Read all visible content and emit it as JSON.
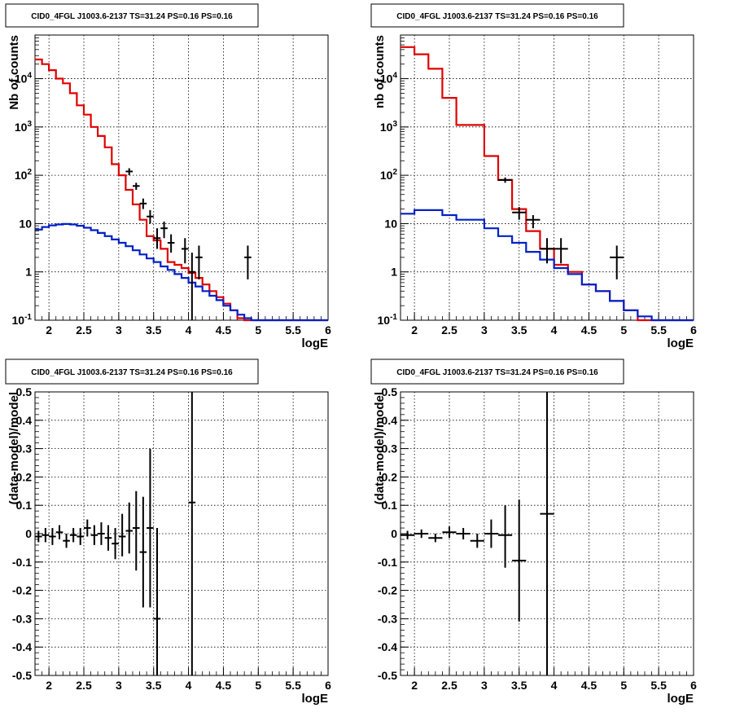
{
  "colors": {
    "model": "#e00000",
    "background": "#0020c8",
    "data": "#000000"
  },
  "chart_data": [
    {
      "type": "line",
      "title": "CID0_4FGL J1003.6-2137 TS=31.24 PS=0.16 PS=0.16",
      "xlabel": "logE",
      "ylabel": "Nb of counts",
      "xlim": [
        1.8,
        6.0
      ],
      "ylim": [
        0.1,
        80000
      ],
      "yscale": "log",
      "grid": true,
      "xticks": [
        "2",
        "2.5",
        "3",
        "3.5",
        "4",
        "4.5",
        "5",
        "5.5",
        "6"
      ],
      "yticks": [
        "10^-1",
        "1",
        "10",
        "10^2",
        "10^3",
        "10^4"
      ],
      "series": [
        {
          "kind": "step",
          "color": "model",
          "edges": [
            1.8,
            1.9,
            2.0,
            2.1,
            2.2,
            2.3,
            2.4,
            2.5,
            2.6,
            2.7,
            2.8,
            2.9,
            3.0,
            3.1,
            3.2,
            3.3,
            3.4,
            3.5,
            3.6,
            3.7,
            3.8,
            3.9,
            4.0,
            4.1,
            4.2,
            4.3,
            4.4,
            4.5,
            4.6,
            4.7,
            4.8,
            4.9,
            5.0,
            5.1,
            5.2,
            5.3,
            5.4,
            5.5,
            5.6,
            5.7,
            5.8,
            5.9,
            6.0
          ],
          "values": [
            25000,
            20000,
            15000,
            10000,
            8000,
            5000,
            2800,
            1800,
            1000,
            650,
            380,
            170,
            100,
            50,
            25,
            12,
            5.5,
            4.5,
            3.0,
            1.6,
            1.4,
            1.2,
            0.95,
            0.75,
            0.55,
            0.4,
            0.3,
            0.22,
            0.16,
            0.11,
            0.1,
            0.1,
            0.1,
            0.1,
            0.1,
            0.1,
            0.1,
            0.1,
            0.1,
            0.1,
            0.1,
            0.1
          ]
        },
        {
          "kind": "step",
          "color": "background",
          "edges": [
            1.8,
            1.9,
            2.0,
            2.1,
            2.2,
            2.3,
            2.4,
            2.5,
            2.6,
            2.7,
            2.8,
            2.9,
            3.0,
            3.1,
            3.2,
            3.3,
            3.4,
            3.5,
            3.6,
            3.7,
            3.8,
            3.9,
            4.0,
            4.1,
            4.2,
            4.3,
            4.4,
            4.5,
            4.6,
            4.7,
            4.8,
            4.9,
            5.0,
            5.1,
            5.2,
            5.3,
            5.4,
            5.5,
            5.6,
            5.7,
            5.8,
            5.9,
            6.0
          ],
          "values": [
            7.5,
            8.5,
            9.2,
            9.6,
            9.8,
            9.6,
            9.0,
            8.2,
            7.3,
            6.4,
            5.5,
            4.7,
            4.0,
            3.4,
            2.8,
            2.3,
            1.9,
            1.6,
            1.3,
            1.1,
            0.9,
            0.75,
            0.6,
            0.5,
            0.4,
            0.32,
            0.26,
            0.2,
            0.16,
            0.13,
            0.11,
            0.1,
            0.1,
            0.1,
            0.1,
            0.1,
            0.1,
            0.1,
            0.1,
            0.1,
            0.1,
            0.1
          ]
        },
        {
          "kind": "points",
          "color": "data",
          "points": [
            {
              "x": 3.15,
              "xerr": 0.05,
              "y": 120,
              "lo": 100,
              "hi": 140
            },
            {
              "x": 3.25,
              "xerr": 0.05,
              "y": 60,
              "lo": 50,
              "hi": 70
            },
            {
              "x": 3.35,
              "xerr": 0.05,
              "y": 26,
              "lo": 20,
              "hi": 33
            },
            {
              "x": 3.45,
              "xerr": 0.05,
              "y": 14,
              "lo": 10,
              "hi": 19
            },
            {
              "x": 3.55,
              "xerr": 0.05,
              "y": 5,
              "lo": 3,
              "hi": 8
            },
            {
              "x": 3.65,
              "xerr": 0.05,
              "y": 8,
              "lo": 5,
              "hi": 11
            },
            {
              "x": 3.75,
              "xerr": 0.05,
              "y": 4,
              "lo": 2.5,
              "hi": 6
            },
            {
              "x": 3.95,
              "xerr": 0.05,
              "y": 3,
              "lo": 1.5,
              "hi": 5
            },
            {
              "x": 4.05,
              "xerr": 0.05,
              "y": 1,
              "lo": 0.1,
              "hi": 2.5
            },
            {
              "x": 4.15,
              "xerr": 0.05,
              "y": 2,
              "lo": 0.7,
              "hi": 3.5
            },
            {
              "x": 4.85,
              "xerr": 0.05,
              "y": 2,
              "lo": 0.7,
              "hi": 3.5
            }
          ]
        }
      ]
    },
    {
      "type": "line",
      "title": "CID0_4FGL J1003.6-2137 TS=31.24 PS=0.16 PS=0.16",
      "xlabel": "logE",
      "ylabel": "nb of counts",
      "xlim": [
        1.8,
        6.0
      ],
      "ylim": [
        0.1,
        80000
      ],
      "yscale": "log",
      "grid": true,
      "xticks": [
        "2",
        "2.5",
        "3",
        "3.5",
        "4",
        "4.5",
        "5",
        "5.5",
        "6"
      ],
      "yticks": [
        "10^-1",
        "1",
        "10",
        "10^2",
        "10^3",
        "10^4"
      ],
      "series": [
        {
          "kind": "step",
          "color": "model",
          "edges": [
            1.8,
            2.0,
            2.2,
            2.4,
            2.6,
            2.8,
            3.0,
            3.2,
            3.4,
            3.6,
            3.8,
            4.0,
            4.2,
            4.4,
            4.6,
            4.8,
            5.0,
            5.2,
            5.4,
            5.6,
            5.8,
            6.0
          ],
          "values": [
            45000,
            32000,
            16000,
            4000,
            1100,
            1100,
            250,
            80,
            20,
            7,
            3,
            1.4,
            1.0,
            0.55,
            0.4,
            0.25,
            0.16,
            0.1,
            0.1,
            0.1,
            0.1
          ]
        },
        {
          "kind": "step",
          "color": "background",
          "edges": [
            1.8,
            2.0,
            2.2,
            2.4,
            2.6,
            2.8,
            3.0,
            3.2,
            3.4,
            3.6,
            3.8,
            4.0,
            4.2,
            4.4,
            4.6,
            4.8,
            5.0,
            5.2,
            5.4,
            5.6,
            5.8,
            6.0
          ],
          "values": [
            16,
            19,
            19,
            15,
            12,
            12,
            8,
            5.5,
            4.0,
            2.6,
            1.8,
            1.2,
            0.9,
            0.55,
            0.4,
            0.25,
            0.16,
            0.12,
            0.1,
            0.1,
            0.1
          ]
        },
        {
          "kind": "points",
          "color": "data",
          "points": [
            {
              "x": 3.3,
              "xerr": 0.1,
              "y": 80,
              "lo": 70,
              "hi": 90
            },
            {
              "x": 3.5,
              "xerr": 0.1,
              "y": 17,
              "lo": 12,
              "hi": 22
            },
            {
              "x": 3.7,
              "xerr": 0.1,
              "y": 12,
              "lo": 8,
              "hi": 15
            },
            {
              "x": 3.9,
              "xerr": 0.1,
              "y": 3,
              "lo": 1.5,
              "hi": 5
            },
            {
              "x": 4.1,
              "xerr": 0.1,
              "y": 3,
              "lo": 1.5,
              "hi": 5
            },
            {
              "x": 4.9,
              "xerr": 0.1,
              "y": 2,
              "lo": 0.7,
              "hi": 3.5
            }
          ]
        }
      ]
    },
    {
      "type": "scatter",
      "title": "CID0_4FGL J1003.6-2137 TS=31.24 PS=0.16 PS=0.16",
      "xlabel": "logE",
      "ylabel": "(data-model)/model",
      "xlim": [
        1.8,
        6.0
      ],
      "ylim": [
        -0.5,
        0.5
      ],
      "grid": true,
      "xticks": [
        "2",
        "2.5",
        "3",
        "3.5",
        "4",
        "4.5",
        "5",
        "5.5",
        "6"
      ],
      "yticks": [
        "-0.5",
        "-0.4",
        "-0.3",
        "-0.2",
        "-0.1",
        "0",
        "0.1",
        "0.2",
        "0.3",
        "0.4",
        "0.5"
      ],
      "series": [
        {
          "kind": "points",
          "color": "data",
          "points": [
            {
              "x": 1.85,
              "xerr": 0.05,
              "y": -0.01,
              "lo": -0.03,
              "hi": 0.01
            },
            {
              "x": 1.95,
              "xerr": 0.05,
              "y": -0.005,
              "lo": -0.03,
              "hi": 0.02
            },
            {
              "x": 2.05,
              "xerr": 0.05,
              "y": -0.01,
              "lo": -0.04,
              "hi": 0.02
            },
            {
              "x": 2.15,
              "xerr": 0.05,
              "y": 0.005,
              "lo": -0.02,
              "hi": 0.03
            },
            {
              "x": 2.25,
              "xerr": 0.05,
              "y": -0.025,
              "lo": -0.05,
              "hi": 0.0
            },
            {
              "x": 2.35,
              "xerr": 0.05,
              "y": -0.005,
              "lo": -0.03,
              "hi": 0.02
            },
            {
              "x": 2.45,
              "xerr": 0.05,
              "y": -0.01,
              "lo": -0.04,
              "hi": 0.02
            },
            {
              "x": 2.55,
              "xerr": 0.05,
              "y": 0.02,
              "lo": -0.01,
              "hi": 0.05
            },
            {
              "x": 2.65,
              "xerr": 0.05,
              "y": -0.005,
              "lo": -0.04,
              "hi": 0.03
            },
            {
              "x": 2.75,
              "xerr": 0.05,
              "y": 0.0,
              "lo": -0.04,
              "hi": 0.04
            },
            {
              "x": 2.85,
              "xerr": 0.05,
              "y": -0.015,
              "lo": -0.06,
              "hi": 0.03
            },
            {
              "x": 2.95,
              "xerr": 0.05,
              "y": -0.035,
              "lo": -0.09,
              "hi": 0.02
            },
            {
              "x": 3.05,
              "xerr": 0.05,
              "y": -0.01,
              "lo": -0.08,
              "hi": 0.07
            },
            {
              "x": 3.15,
              "xerr": 0.05,
              "y": 0.01,
              "lo": -0.07,
              "hi": 0.11
            },
            {
              "x": 3.25,
              "xerr": 0.05,
              "y": 0.02,
              "lo": -0.13,
              "hi": 0.15
            },
            {
              "x": 3.35,
              "xerr": 0.05,
              "y": -0.065,
              "lo": -0.26,
              "hi": 0.13
            },
            {
              "x": 3.45,
              "xerr": 0.05,
              "y": 0.02,
              "lo": -0.26,
              "hi": 0.3
            },
            {
              "x": 3.55,
              "xerr": 0.05,
              "y": -0.3,
              "lo": -0.5,
              "hi": 0.02
            },
            {
              "x": 4.05,
              "xerr": 0.05,
              "y": 0.11,
              "lo": -0.5,
              "hi": 0.5
            }
          ]
        }
      ]
    },
    {
      "type": "scatter",
      "title": "CID0_4FGL J1003.6-2137 TS=31.24 PS=0.16 PS=0.16",
      "xlabel": "logE",
      "ylabel": "(data-model)/model",
      "xlim": [
        1.8,
        6.0
      ],
      "ylim": [
        -0.5,
        0.5
      ],
      "grid": true,
      "xticks": [
        "2",
        "2.5",
        "3",
        "3.5",
        "4",
        "4.5",
        "5",
        "5.5",
        "6"
      ],
      "yticks": [
        "-0.5",
        "-0.4",
        "-0.3",
        "-0.2",
        "-0.1",
        "0",
        "0.1",
        "0.2",
        "0.3",
        "0.4",
        "0.5"
      ],
      "series": [
        {
          "kind": "points",
          "color": "data",
          "points": [
            {
              "x": 1.9,
              "xerr": 0.1,
              "y": -0.005,
              "lo": -0.02,
              "hi": 0.01
            },
            {
              "x": 2.1,
              "xerr": 0.1,
              "y": 0.0,
              "lo": -0.015,
              "hi": 0.015
            },
            {
              "x": 2.3,
              "xerr": 0.1,
              "y": -0.015,
              "lo": -0.03,
              "hi": 0.0
            },
            {
              "x": 2.5,
              "xerr": 0.1,
              "y": 0.005,
              "lo": -0.015,
              "hi": 0.025
            },
            {
              "x": 2.7,
              "xerr": 0.1,
              "y": 0.0,
              "lo": -0.02,
              "hi": 0.02
            },
            {
              "x": 2.9,
              "xerr": 0.1,
              "y": -0.025,
              "lo": -0.05,
              "hi": 0.0
            },
            {
              "x": 3.1,
              "xerr": 0.1,
              "y": 0.0,
              "lo": -0.05,
              "hi": 0.05
            },
            {
              "x": 3.3,
              "xerr": 0.1,
              "y": -0.005,
              "lo": -0.12,
              "hi": 0.1
            },
            {
              "x": 3.5,
              "xerr": 0.1,
              "y": -0.095,
              "lo": -0.31,
              "hi": 0.12
            },
            {
              "x": 3.9,
              "xerr": 0.1,
              "y": 0.07,
              "lo": -0.5,
              "hi": 0.5
            }
          ]
        }
      ]
    }
  ]
}
